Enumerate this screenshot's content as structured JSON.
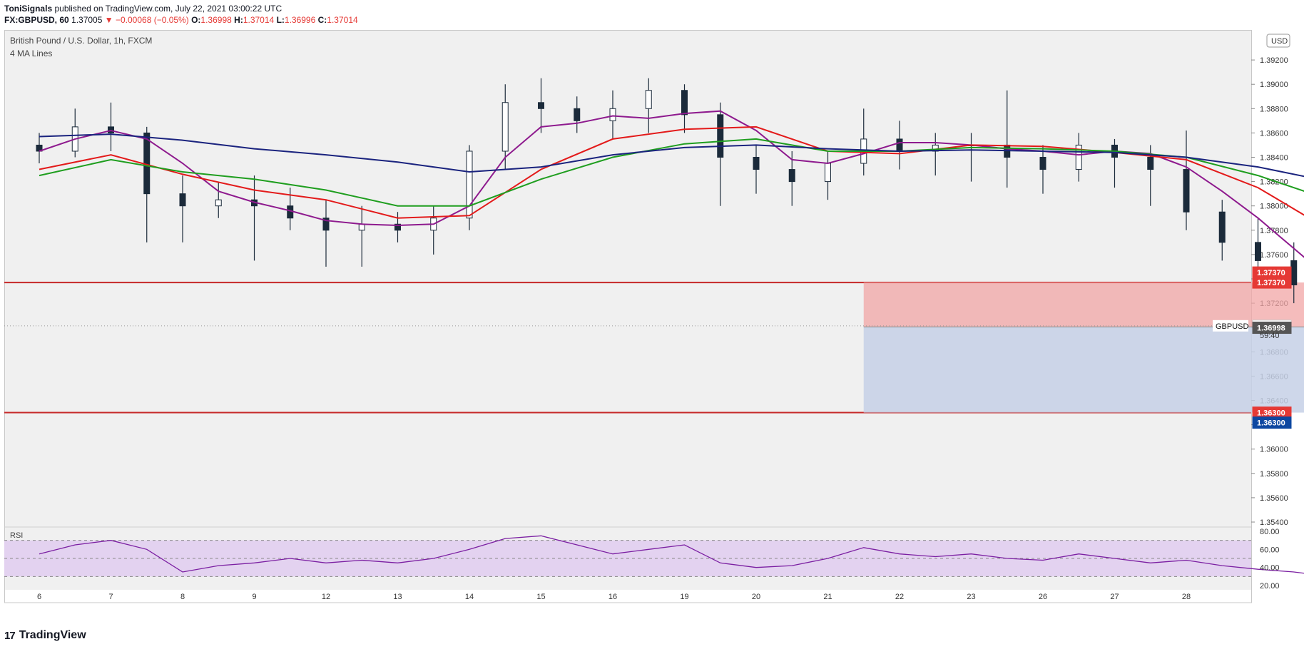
{
  "header": {
    "author": "ToniSignals",
    "published": "published on TradingView.com, July 22, 2021 03:00:22 UTC",
    "symbol_line_prefix": "FX:GBPUSD, 60",
    "price": "1.37005",
    "change": "▼ −0.00068 (−0.05%)",
    "o_label": "O:",
    "o_value": "1.36998",
    "h_label": "H:",
    "h_value": "1.37014",
    "l_label": "L:",
    "l_value": "1.36996",
    "c_label": "C:",
    "c_value": "1.37014"
  },
  "footer": {
    "brand": "TradingView",
    "logo_glyph": "17"
  },
  "chart_data": {
    "type": "candlestick",
    "title": "British Pound / U.S. Dollar, 1h, FXCM",
    "indicator_label": "4 MA Lines",
    "currency_badge": "USD",
    "symbol_tag": "GBPUSD",
    "countdown": "59:40",
    "ylim": [
      1.354,
      1.394
    ],
    "yticks": [
      "1.39200",
      "1.39000",
      "1.38800",
      "1.38600",
      "1.38400",
      "1.38200",
      "1.38000",
      "1.37800",
      "1.37600",
      "1.37400",
      "1.37200",
      "1.37000",
      "1.36800",
      "1.36600",
      "1.36400",
      "1.36200",
      "1.36000",
      "1.35800",
      "1.35600",
      "1.35400"
    ],
    "ytick_values": [
      1.392,
      1.39,
      1.388,
      1.386,
      1.384,
      1.382,
      1.38,
      1.378,
      1.376,
      1.374,
      1.372,
      1.37,
      1.368,
      1.366,
      1.364,
      1.362,
      1.36,
      1.358,
      1.356,
      1.354
    ],
    "xticks": [
      "6",
      "7",
      "8",
      "9",
      "12",
      "13",
      "14",
      "15",
      "16",
      "19",
      "20",
      "21",
      "22",
      "23",
      "26",
      "27",
      "28"
    ],
    "horizontal_levels": [
      1.3737,
      1.363
    ],
    "price_labels": [
      {
        "value": 1.3737,
        "text": "1.37370",
        "color": "#e53935"
      },
      {
        "value": 1.3737,
        "text": "1.37370",
        "color": "#e53935"
      },
      {
        "value": 1.363,
        "text": "1.36300",
        "color": "#e53935"
      },
      {
        "value": 1.363,
        "text": "1.36300",
        "color": "#0d47a1"
      },
      {
        "value": 1.37014,
        "text": "1.37014",
        "color": "#ffffff"
      },
      {
        "value": 1.36998,
        "text": "1.36998",
        "color": "#555555"
      }
    ],
    "position": {
      "entry": 1.37005,
      "stop": 1.3737,
      "target": 1.363,
      "x_start": 23.0,
      "x_end": 39.0
    },
    "current_price": 1.37014,
    "series": [
      {
        "name": "MA fast",
        "color": "#8e1a8e",
        "x": [
          0,
          0.5,
          1,
          1.5,
          2,
          2.5,
          3,
          3.5,
          4,
          4.5,
          5,
          5.5,
          6,
          6.5,
          7,
          7.5,
          8,
          8.5,
          9,
          9.5,
          10,
          10.5,
          11,
          11.5,
          12,
          12.5,
          13,
          13.5,
          14,
          14.5,
          15,
          15.5,
          16,
          16.5,
          17,
          17.5,
          18,
          18.5,
          19,
          19.5,
          20,
          20.5,
          21,
          21.5,
          22,
          22.5,
          23
        ],
        "values": [
          1.3845,
          1.3855,
          1.3862,
          1.3855,
          1.3835,
          1.3812,
          1.3803,
          1.3796,
          1.3788,
          1.3785,
          1.3784,
          1.3785,
          1.38,
          1.384,
          1.3865,
          1.3868,
          1.3874,
          1.3872,
          1.3876,
          1.3878,
          1.3862,
          1.3838,
          1.3835,
          1.3843,
          1.3852,
          1.3852,
          1.385,
          1.3847,
          1.3845,
          1.3842,
          1.3845,
          1.3843,
          1.3832,
          1.3812,
          1.379,
          1.3765,
          1.374,
          1.3712,
          1.3685,
          1.367,
          1.3655,
          1.3638,
          1.3632,
          1.3628,
          1.3628,
          1.3655,
          1.368
        ]
      },
      {
        "name": "MA medium",
        "color": "#e31a1a",
        "x": [
          0,
          1,
          2,
          3,
          4,
          5,
          6,
          7,
          8,
          9,
          10,
          11,
          12,
          13,
          14,
          15,
          16,
          17,
          18,
          19,
          20,
          21,
          22,
          22.5,
          23
        ],
        "values": [
          1.383,
          1.3842,
          1.3826,
          1.3813,
          1.3805,
          1.379,
          1.3792,
          1.383,
          1.3855,
          1.3863,
          1.3865,
          1.3845,
          1.3843,
          1.385,
          1.3849,
          1.3844,
          1.3838,
          1.3815,
          1.378,
          1.3738,
          1.371,
          1.3685,
          1.366,
          1.366,
          1.3672
        ]
      },
      {
        "name": "MA slow",
        "color": "#1f9e1f",
        "x": [
          0,
          1,
          2,
          3,
          4,
          5,
          6,
          7,
          8,
          9,
          10,
          11,
          12,
          13,
          14,
          15,
          16,
          17,
          18,
          19,
          20,
          21,
          22,
          23
        ],
        "values": [
          1.3825,
          1.3838,
          1.3828,
          1.3822,
          1.3813,
          1.38,
          1.38,
          1.3822,
          1.384,
          1.3851,
          1.3855,
          1.3845,
          1.3845,
          1.3848,
          1.3847,
          1.3845,
          1.384,
          1.3825,
          1.3805,
          1.3782,
          1.3755,
          1.373,
          1.371,
          1.37
        ]
      },
      {
        "name": "MA long",
        "color": "#1a237e",
        "x": [
          0,
          1,
          2,
          3,
          4,
          5,
          6,
          7,
          8,
          9,
          10,
          11,
          12,
          13,
          14,
          15,
          16,
          17,
          18,
          19,
          20,
          21,
          22,
          23
        ],
        "values": [
          1.3857,
          1.3859,
          1.3854,
          1.3847,
          1.3842,
          1.3836,
          1.3828,
          1.3832,
          1.3842,
          1.3848,
          1.385,
          1.3847,
          1.3845,
          1.3846,
          1.3845,
          1.3844,
          1.384,
          1.3832,
          1.382,
          1.3805,
          1.3788,
          1.377,
          1.3755,
          1.3745
        ]
      }
    ],
    "candles": {
      "x": [
        0,
        0.5,
        1,
        1.5,
        2,
        2.5,
        3,
        3.5,
        4,
        4.5,
        5,
        5.5,
        6,
        6.5,
        7,
        7.5,
        8,
        8.5,
        9,
        9.5,
        10,
        10.5,
        11,
        11.5,
        12,
        12.5,
        13,
        13.5,
        14,
        14.5,
        15,
        15.5,
        16,
        16.5,
        17,
        17.5,
        18,
        18.5,
        19,
        19.5,
        20,
        20.5,
        21,
        21.5,
        22,
        22.5,
        23
      ],
      "open": [
        1.385,
        1.3845,
        1.3865,
        1.386,
        1.381,
        1.38,
        1.3805,
        1.38,
        1.379,
        1.378,
        1.3785,
        1.378,
        1.379,
        1.3845,
        1.3885,
        1.388,
        1.387,
        1.388,
        1.3895,
        1.3875,
        1.384,
        1.383,
        1.382,
        1.3835,
        1.3855,
        1.3845,
        1.385,
        1.385,
        1.384,
        1.383,
        1.385,
        1.384,
        1.383,
        1.3795,
        1.377,
        1.3755,
        1.3735,
        1.368,
        1.368,
        1.367,
        1.363,
        1.362,
        1.3625,
        1.363,
        1.3615,
        1.368,
        1.371
      ],
      "close": [
        1.3845,
        1.3865,
        1.386,
        1.381,
        1.38,
        1.3805,
        1.38,
        1.379,
        1.378,
        1.3785,
        1.378,
        1.379,
        1.3845,
        1.3885,
        1.388,
        1.387,
        1.388,
        1.3895,
        1.3875,
        1.384,
        1.383,
        1.382,
        1.3835,
        1.3855,
        1.3845,
        1.385,
        1.385,
        1.384,
        1.383,
        1.385,
        1.384,
        1.383,
        1.3795,
        1.377,
        1.3755,
        1.3735,
        1.368,
        1.368,
        1.367,
        1.363,
        1.362,
        1.3625,
        1.363,
        1.3615,
        1.368,
        1.371,
        1.3701
      ],
      "high": [
        1.386,
        1.388,
        1.3885,
        1.3865,
        1.3825,
        1.382,
        1.3825,
        1.3815,
        1.3805,
        1.38,
        1.3795,
        1.38,
        1.385,
        1.39,
        1.3905,
        1.389,
        1.3895,
        1.3905,
        1.39,
        1.3885,
        1.385,
        1.3845,
        1.3845,
        1.388,
        1.387,
        1.386,
        1.386,
        1.3895,
        1.385,
        1.386,
        1.3855,
        1.385,
        1.3862,
        1.3805,
        1.379,
        1.377,
        1.3745,
        1.37,
        1.369,
        1.368,
        1.364,
        1.3635,
        1.364,
        1.364,
        1.369,
        1.3722,
        1.3715
      ],
      "low": [
        1.3835,
        1.384,
        1.3845,
        1.377,
        1.377,
        1.379,
        1.3755,
        1.378,
        1.375,
        1.375,
        1.377,
        1.376,
        1.378,
        1.383,
        1.386,
        1.386,
        1.3855,
        1.386,
        1.386,
        1.38,
        1.381,
        1.38,
        1.3805,
        1.3825,
        1.383,
        1.3825,
        1.382,
        1.3815,
        1.381,
        1.382,
        1.3815,
        1.38,
        1.378,
        1.3755,
        1.374,
        1.372,
        1.366,
        1.3655,
        1.365,
        1.36,
        1.3575,
        1.36,
        1.361,
        1.3595,
        1.3605,
        1.367,
        1.3695
      ]
    },
    "rsi": {
      "name": "RSI",
      "ylim": [
        20,
        80
      ],
      "yticks": [
        "80.00",
        "60.00",
        "40.00",
        "20.00"
      ],
      "ytick_values": [
        80,
        60,
        40,
        20
      ],
      "band": [
        30,
        70
      ],
      "midline": 50,
      "x": [
        0,
        0.5,
        1,
        1.5,
        2,
        2.5,
        3,
        3.5,
        4,
        4.5,
        5,
        5.5,
        6,
        6.5,
        7,
        7.5,
        8,
        8.5,
        9,
        9.5,
        10,
        10.5,
        11,
        11.5,
        12,
        12.5,
        13,
        13.5,
        14,
        14.5,
        15,
        15.5,
        16,
        16.5,
        17,
        17.5,
        18,
        18.5,
        19,
        19.5,
        20,
        20.5,
        21,
        21.5,
        22,
        22.5,
        23
      ],
      "values": [
        55,
        65,
        70,
        60,
        35,
        42,
        45,
        50,
        45,
        48,
        45,
        50,
        60,
        72,
        75,
        65,
        55,
        60,
        65,
        45,
        40,
        42,
        50,
        62,
        55,
        52,
        55,
        50,
        48,
        55,
        50,
        45,
        48,
        42,
        38,
        35,
        30,
        35,
        32,
        38,
        30,
        35,
        42,
        40,
        45,
        68,
        58
      ]
    }
  }
}
